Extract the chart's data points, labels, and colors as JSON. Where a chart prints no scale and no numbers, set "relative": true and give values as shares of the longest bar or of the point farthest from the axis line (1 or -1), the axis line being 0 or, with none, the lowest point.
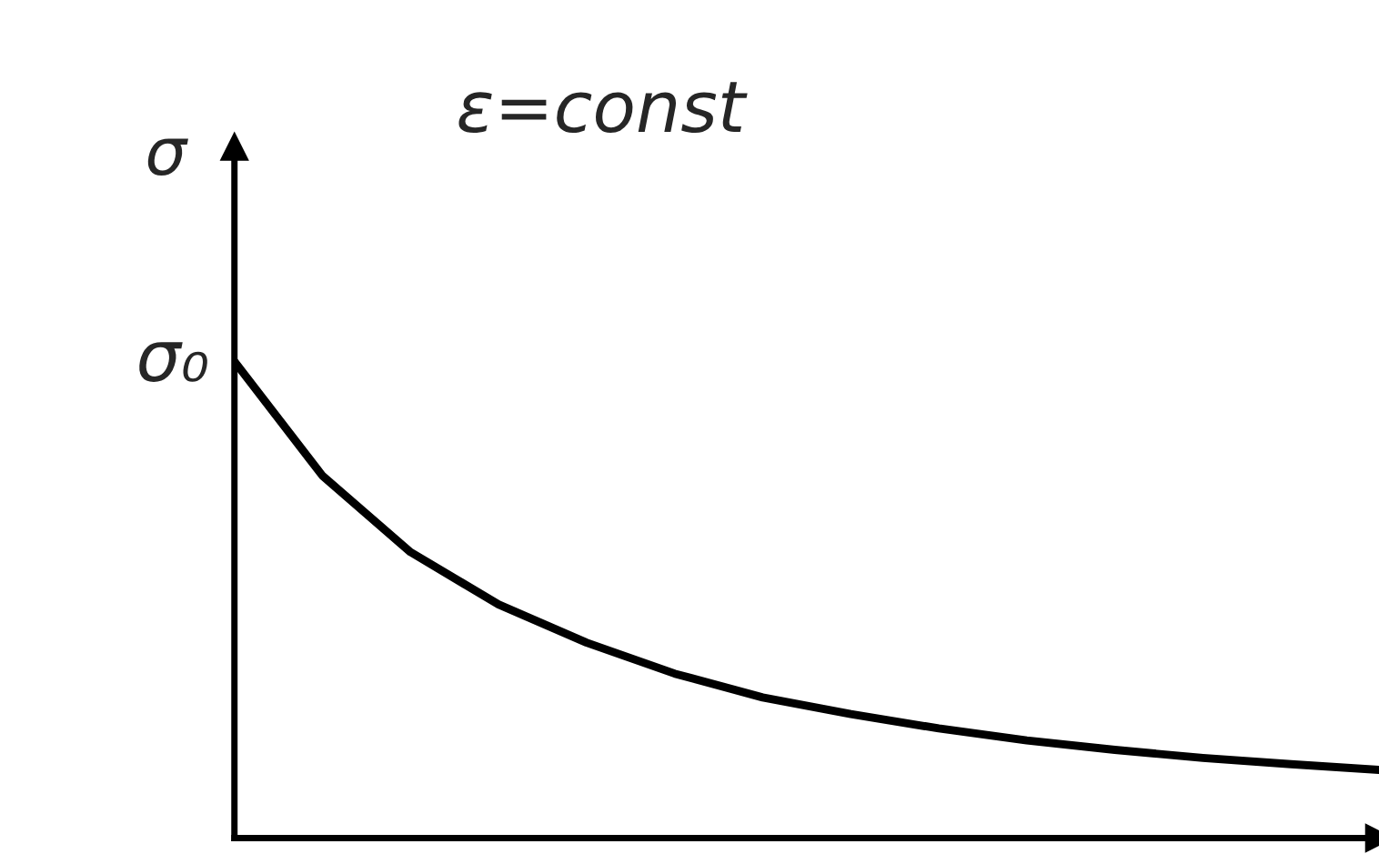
{
  "chart_data": {
    "type": "line",
    "relative": true,
    "ylabel": "σ",
    "categories": [
      null,
      null,
      null,
      null,
      null,
      null,
      null,
      null,
      null,
      null,
      null,
      null,
      null,
      null
    ],
    "series": [
      {
        "color": "#000000",
        "values": [
          1.0,
          0.76,
          0.6,
          0.49,
          0.41,
          0.345,
          0.295,
          0.26,
          0.23,
          0.205,
          0.185,
          0.168,
          0.155,
          0.143
        ]
      }
    ],
    "annotations": [
      "ε=const",
      "σ₀"
    ],
    "marker": "none",
    "line_style": "solid"
  }
}
